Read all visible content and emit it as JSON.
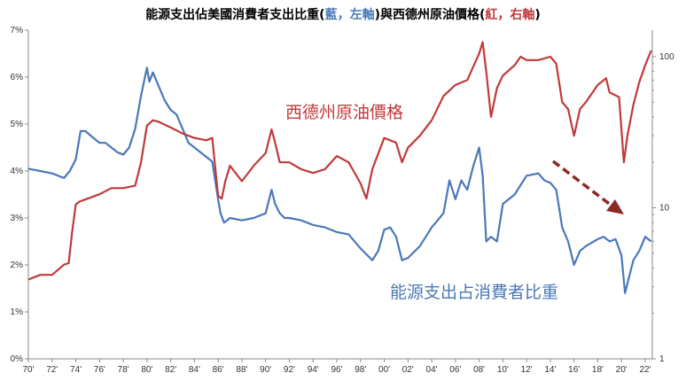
{
  "chart_data": {
    "type": "line",
    "title": {
      "main": "能源支出佔美國消費者支出比重(",
      "blue_word": "藍，左軸",
      "middle": ")與西德州原油價格(",
      "red_word": "紅，右軸",
      "end": ")"
    },
    "x_ticks": [
      "70'",
      "72'",
      "74'",
      "76'",
      "78'",
      "80'",
      "82'",
      "84'",
      "86'",
      "88'",
      "90'",
      "92'",
      "94'",
      "96'",
      "98'",
      "00'",
      "02'",
      "04'",
      "06'",
      "08'",
      "10'",
      "12'",
      "14'",
      "16'",
      "18'",
      "20'",
      "22'"
    ],
    "x_range": [
      1970,
      2022.6
    ],
    "y_left": {
      "ticks": [
        "0%",
        "1%",
        "2%",
        "3%",
        "4%",
        "5%",
        "6%",
        "7%"
      ],
      "range": [
        0,
        7
      ],
      "unit": "%"
    },
    "y_right": {
      "ticks": [
        "1",
        "10",
        "100"
      ],
      "scale": "log",
      "range": [
        1,
        150
      ]
    },
    "annotations": {
      "red_label": "西德州原油價格",
      "blue_label": "能源支出占消費者比重",
      "arrow": "down-right trend arrow (dashed, dark red)"
    },
    "colors": {
      "blue": "#4a78b8",
      "red": "#c0393b",
      "arrow": "#8b2a24",
      "axis": "#888888"
    },
    "series": [
      {
        "axis": "left",
        "color": "#4a78b8",
        "x": [
          1970,
          1971,
          1972,
          1973,
          1973.5,
          1974,
          1974.4,
          1974.8,
          1975.5,
          1976,
          1976.5,
          1977,
          1977.5,
          1978,
          1978.5,
          1979,
          1979.5,
          1980,
          1980.2,
          1980.5,
          1981,
          1981.5,
          1982,
          1982.5,
          1983,
          1983.5,
          1984,
          1985,
          1985.5,
          1986,
          1986.2,
          1986.5,
          1987,
          1988,
          1989,
          1990,
          1990.5,
          1990.8,
          1991.2,
          1991.6,
          1992,
          1993,
          1994,
          1995,
          1996,
          1997,
          1998,
          1999,
          1999.5,
          2000,
          2000.5,
          2001,
          2001.5,
          2002,
          2003,
          2003.5,
          2004,
          2005,
          2005.5,
          2006,
          2006.5,
          2007,
          2007.5,
          2008,
          2008.3,
          2008.6,
          2009,
          2009.5,
          2010,
          2011,
          2011.5,
          2012,
          2013,
          2013.5,
          2014,
          2014.5,
          2015,
          2015.5,
          2016,
          2016.5,
          2017,
          2018,
          2018.5,
          2019,
          2019.5,
          2020,
          2020.3,
          2020.6,
          2021,
          2021.5,
          2022,
          2022.5
        ],
        "y": [
          4.05,
          4.0,
          3.95,
          3.85,
          4.0,
          4.25,
          4.85,
          4.85,
          4.7,
          4.6,
          4.6,
          4.5,
          4.4,
          4.35,
          4.5,
          4.9,
          5.6,
          6.2,
          5.9,
          6.1,
          5.8,
          5.5,
          5.3,
          5.2,
          4.9,
          4.6,
          4.5,
          4.3,
          4.2,
          3.4,
          3.1,
          2.9,
          3.0,
          2.95,
          3.0,
          3.1,
          3.6,
          3.3,
          3.1,
          3.0,
          3.0,
          2.95,
          2.85,
          2.8,
          2.7,
          2.65,
          2.35,
          2.1,
          2.3,
          2.75,
          2.8,
          2.6,
          2.1,
          2.15,
          2.4,
          2.6,
          2.8,
          3.1,
          3.8,
          3.4,
          3.8,
          3.6,
          4.1,
          4.5,
          3.9,
          2.5,
          2.6,
          2.5,
          3.3,
          3.5,
          3.7,
          3.9,
          3.95,
          3.8,
          3.75,
          3.6,
          2.8,
          2.5,
          2.0,
          2.3,
          2.4,
          2.55,
          2.6,
          2.5,
          2.55,
          2.2,
          1.4,
          1.7,
          2.1,
          2.3,
          2.6,
          2.5
        ]
      },
      {
        "axis": "right",
        "color": "#c0393b",
        "x": [
          1970,
          1971,
          1972,
          1973,
          1973.4,
          1973.7,
          1974,
          1974.3,
          1975,
          1976,
          1977,
          1978,
          1979,
          1979.5,
          1980,
          1980.5,
          1981,
          1982,
          1983,
          1984,
          1985,
          1985.5,
          1986,
          1986.3,
          1986.6,
          1987,
          1988,
          1989,
          1990,
          1990.5,
          1990.8,
          1991.2,
          1992,
          1993,
          1994,
          1995,
          1996,
          1997,
          1998,
          1998.5,
          1999,
          2000,
          2001,
          2001.5,
          2002,
          2003,
          2004,
          2005,
          2006,
          2007,
          2008,
          2008.3,
          2008.6,
          2009,
          2009.5,
          2010,
          2011,
          2011.5,
          2012,
          2013,
          2014,
          2014.5,
          2015,
          2015.5,
          2016,
          2016.5,
          2017,
          2018,
          2018.7,
          2019,
          2019.8,
          2020.2,
          2020.5,
          2021,
          2021.5,
          2022,
          2022.5
        ],
        "y": [
          3.35,
          3.6,
          3.6,
          4.2,
          4.3,
          7,
          10.5,
          11,
          11.5,
          12.3,
          13.5,
          13.5,
          14,
          20,
          35,
          38,
          37,
          34,
          31,
          29,
          28,
          29,
          12,
          11.5,
          15,
          19,
          15,
          19,
          23,
          33,
          27,
          20,
          20,
          18,
          17,
          18,
          22,
          20,
          14.5,
          11.5,
          18,
          29,
          27,
          20,
          25,
          30,
          38,
          55,
          65,
          70,
          105,
          125,
          80,
          40,
          62,
          75,
          88,
          100,
          95,
          95,
          100,
          90,
          50,
          45,
          30,
          45,
          50,
          65,
          72,
          58,
          54,
          20,
          30,
          48,
          68,
          88,
          110
        ]
      }
    ]
  }
}
